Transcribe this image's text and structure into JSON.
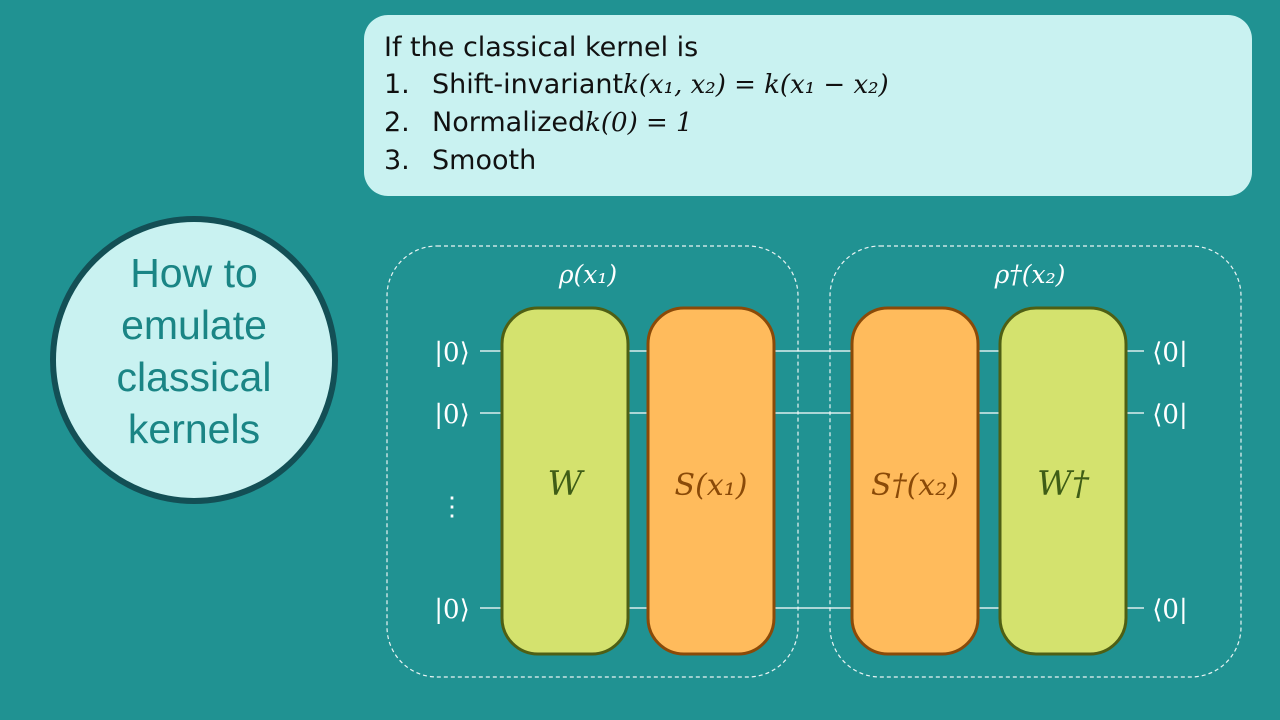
{
  "conditions": {
    "intro": "If the classical kernel is",
    "items": [
      {
        "number": "1.",
        "text": "Shift-invariant ",
        "math": "k(x₁, x₂) = k(x₁ − x₂)"
      },
      {
        "number": "2.",
        "text": "Normalized ",
        "math": "k(0) = 1"
      },
      {
        "number": "3.",
        "text": "Smooth",
        "math": ""
      }
    ]
  },
  "title": "How to emulate classical kernels",
  "circuit": {
    "left_group_label": "ρ(x₁)",
    "right_group_label": "ρ†(x₂)",
    "input_ket": "|0⟩",
    "output_bra": "⟨0|",
    "ellipsis": "⋮",
    "gates": {
      "w": "W",
      "s": "S(x₁)",
      "s_dagger": "S†(x₂)",
      "w_dagger": "W†"
    }
  },
  "colors": {
    "background": "#209292",
    "panel": "#c9f2f1",
    "circle_border": "#134f55",
    "title_text": "#1a8585",
    "gate_green_fill": "#d4e26e",
    "gate_green_stroke": "#4e5f14",
    "gate_green_text": "#3f5d16",
    "gate_orange_fill": "#ffbb5c",
    "gate_orange_stroke": "#8a4a08",
    "gate_orange_text": "#8a4a08",
    "wire": "#ffffff"
  }
}
